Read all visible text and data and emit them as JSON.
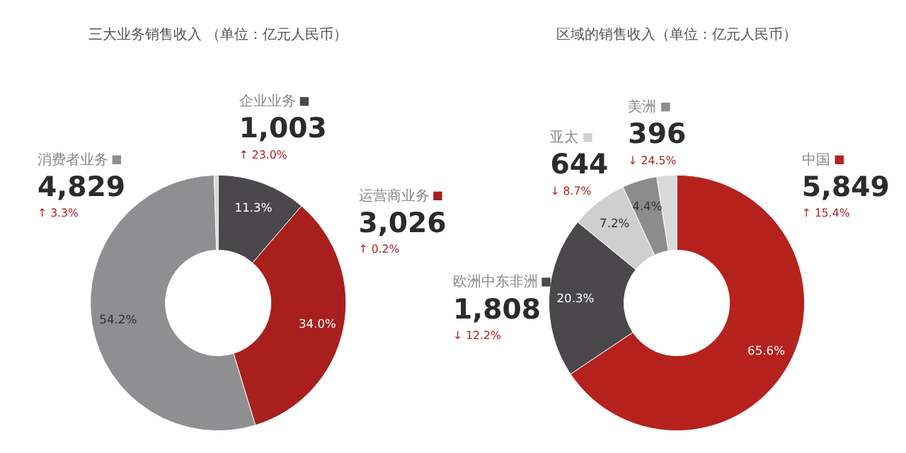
{
  "chart_data": [
    {
      "type": "donut",
      "title": "三大业务销售收入 （单位：亿元人民币）",
      "categories": [
        "企业业务",
        "运营商业务",
        "消费者业务",
        null
      ],
      "values": [
        11.3,
        34.0,
        54.2,
        0.5
      ],
      "colors": [
        "#4a484b",
        "#a81f1d",
        "#8f8e90",
        "#d6d6d6"
      ],
      "value_labels": [
        "11.3%",
        "34.0%",
        "54.2%",
        null
      ],
      "annotations": [
        "1,003",
        "↑ 23.0%",
        "3,026",
        "↑ 0.2%",
        "4,829",
        "↑ 3.3%"
      ],
      "legend": "top"
    },
    {
      "type": "donut",
      "title": "区域的销售收入（单位：亿元人民币）",
      "categories": [
        "中国",
        "欧洲中东非洲",
        "亚太",
        "美洲",
        null
      ],
      "values": [
        65.6,
        20.3,
        7.2,
        4.4,
        2.5
      ],
      "colors": [
        "#b5221d",
        "#4a484b",
        "#cfcfcf",
        "#8c8c8c",
        "#dadada"
      ],
      "value_labels": [
        "65.6%",
        "20.3%",
        "7.2%",
        "4.4%",
        null
      ],
      "annotations": [
        "5,849",
        "↑ 15.4%",
        "1,808",
        "↓ 12.2%",
        "644",
        "↓ 8.7%",
        "396",
        "↓ 24.5%"
      ],
      "legend": "top"
    }
  ]
}
